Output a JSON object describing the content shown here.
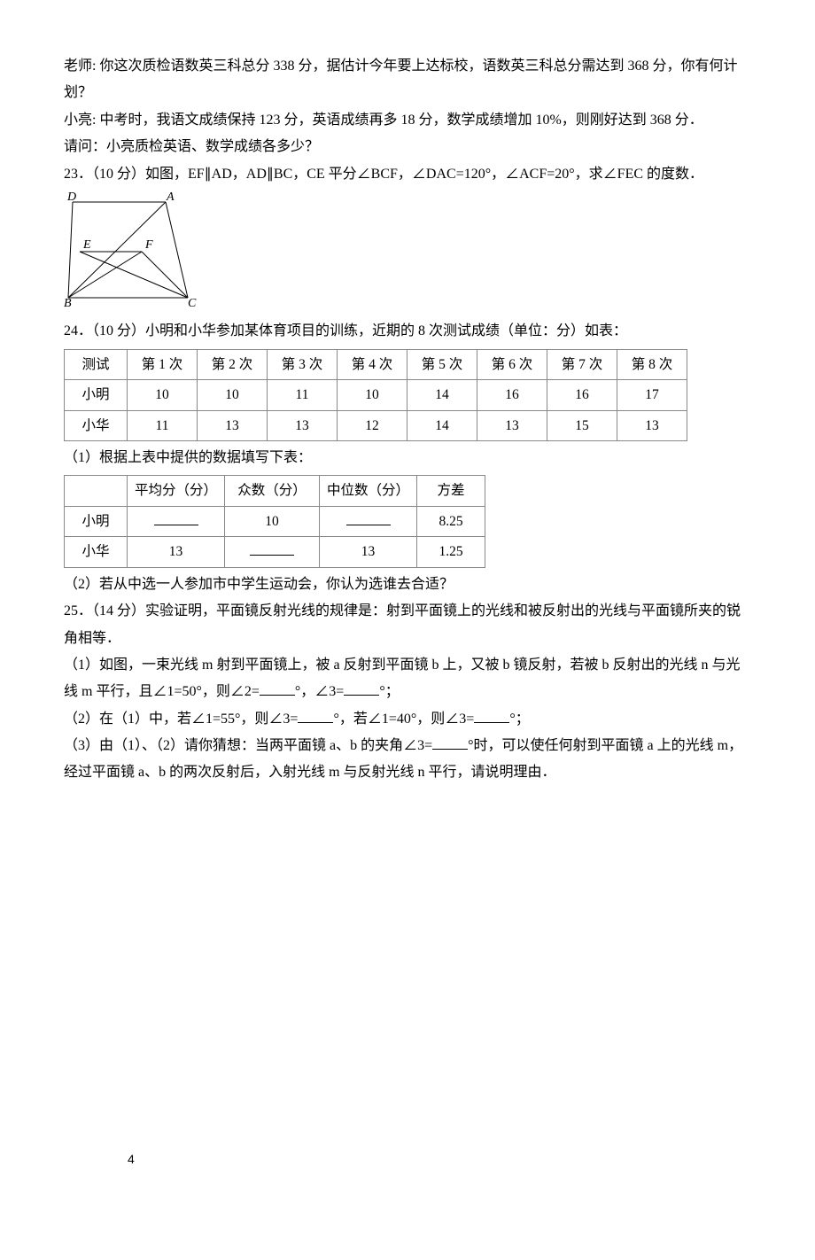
{
  "para": {
    "p1": "老师: 你这次质检语数英三科总分 338 分，据估计今年要上达标校，语数英三科总分需达到 368 分，你有何计划？",
    "p2": "小亮: 中考时，我语文成绩保持 123 分，英语成绩再多 18 分，数学成绩增加 10%，则刚好达到 368 分．",
    "p3": "请问：小亮质检英语、数学成绩各多少？",
    "q23": "23．（10 分）如图，EF∥AD，AD∥BC，CE 平分∠BCF，∠DAC=120°，∠ACF=20°，求∠FEC 的度数．",
    "q24": "24．（10 分）小明和小华参加某体育项目的训练，近期的 8 次测试成绩（单位：分）如表：",
    "q24_1": "（1）根据上表中提供的数据填写下表：",
    "q24_2": "（2）若从中选一人参加市中学生运动会，你认为选谁去合适？",
    "q25": "25．（14 分）实验证明，平面镜反射光线的规律是：射到平面镜上的光线和被反射出的光线与平面镜所夹的锐角相等．",
    "q25_1a": "（1）如图，一束光线 m 射到平面镜上，被 a 反射到平面镜 b 上，又被 b 镜反射，若被 b 反射出的光线 n 与光线 m 平行，且∠1=50°，则∠2=",
    "q25_1b": "°，∠3=",
    "q25_1c": "°；",
    "q25_2a": "（2）在（1）中，若∠1=55°，则∠3=",
    "q25_2b": "°，若∠1=40°，则∠3=",
    "q25_2c": "°；",
    "q25_3a": "（3）由（1）、（2）请你猜想：当两平面镜 a、b 的夹角∠3=",
    "q25_3b": "°时，可以使任何射到平面镜 a 上的光线 m，经过平面镜 a、b 的两次反射后，入射光线 m 与反射光线 n 平行，请说明理由．"
  },
  "table1": {
    "headers": [
      "测试",
      "第 1 次",
      "第 2 次",
      "第 3 次",
      "第 4 次",
      "第 5 次",
      "第 6 次",
      "第 7 次",
      "第 8 次"
    ],
    "rows": [
      {
        "label": "小明",
        "cells": [
          "10",
          "10",
          "11",
          "10",
          "14",
          "16",
          "16",
          "17"
        ]
      },
      {
        "label": "小华",
        "cells": [
          "11",
          "13",
          "13",
          "12",
          "14",
          "13",
          "15",
          "13"
        ]
      }
    ]
  },
  "table2": {
    "headers": [
      "",
      "平均分（分）",
      "众数（分）",
      "中位数（分）",
      "方差"
    ],
    "rows": [
      {
        "label": "小明",
        "cells": [
          "__blank__",
          "10",
          "__blank__",
          "8.25"
        ]
      },
      {
        "label": "小华",
        "cells": [
          "13",
          "__blank__",
          "13",
          "1.25"
        ]
      }
    ]
  },
  "diagram": {
    "D": "D",
    "A": "A",
    "E": "E",
    "F": "F",
    "B": "B",
    "C": "C",
    "stroke": "#000000"
  },
  "pageNumber": "4"
}
